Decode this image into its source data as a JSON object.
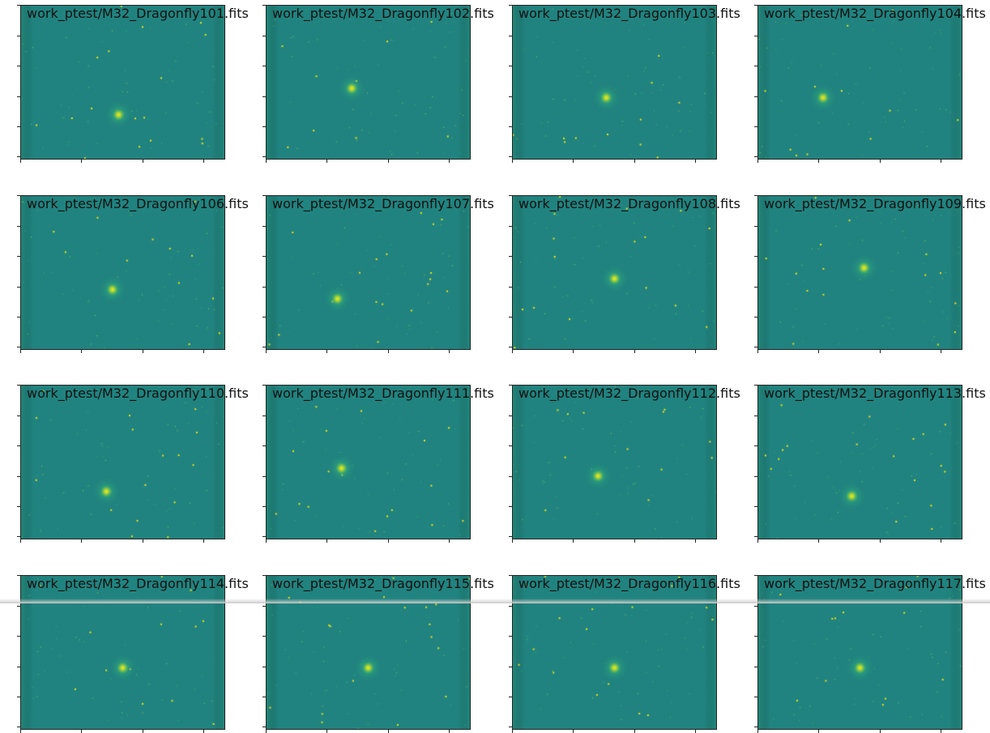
{
  "figure": {
    "colormap": "viridis",
    "panels": [
      {
        "title": "work_ptest/M32_Dragonfly101.fits"
      },
      {
        "title": "work_ptest/M32_Dragonfly102.fits"
      },
      {
        "title": "work_ptest/M32_Dragonfly103.fits"
      },
      {
        "title": "work_ptest/M32_Dragonfly104.fits"
      },
      {
        "title": "work_ptest/M32_Dragonfly106.fits"
      },
      {
        "title": "work_ptest/M32_Dragonfly107.fits"
      },
      {
        "title": "work_ptest/M32_Dragonfly108.fits"
      },
      {
        "title": "work_ptest/M32_Dragonfly109.fits"
      },
      {
        "title": "work_ptest/M32_Dragonfly110.fits"
      },
      {
        "title": "work_ptest/M32_Dragonfly111.fits"
      },
      {
        "title": "work_ptest/M32_Dragonfly112.fits"
      },
      {
        "title": "work_ptest/M32_Dragonfly113.fits"
      },
      {
        "title": "work_ptest/M32_Dragonfly114.fits"
      },
      {
        "title": "work_ptest/M32_Dragonfly115.fits"
      },
      {
        "title": "work_ptest/M32_Dragonfly116.fits"
      },
      {
        "title": "work_ptest/M32_Dragonfly117.fits"
      }
    ]
  }
}
